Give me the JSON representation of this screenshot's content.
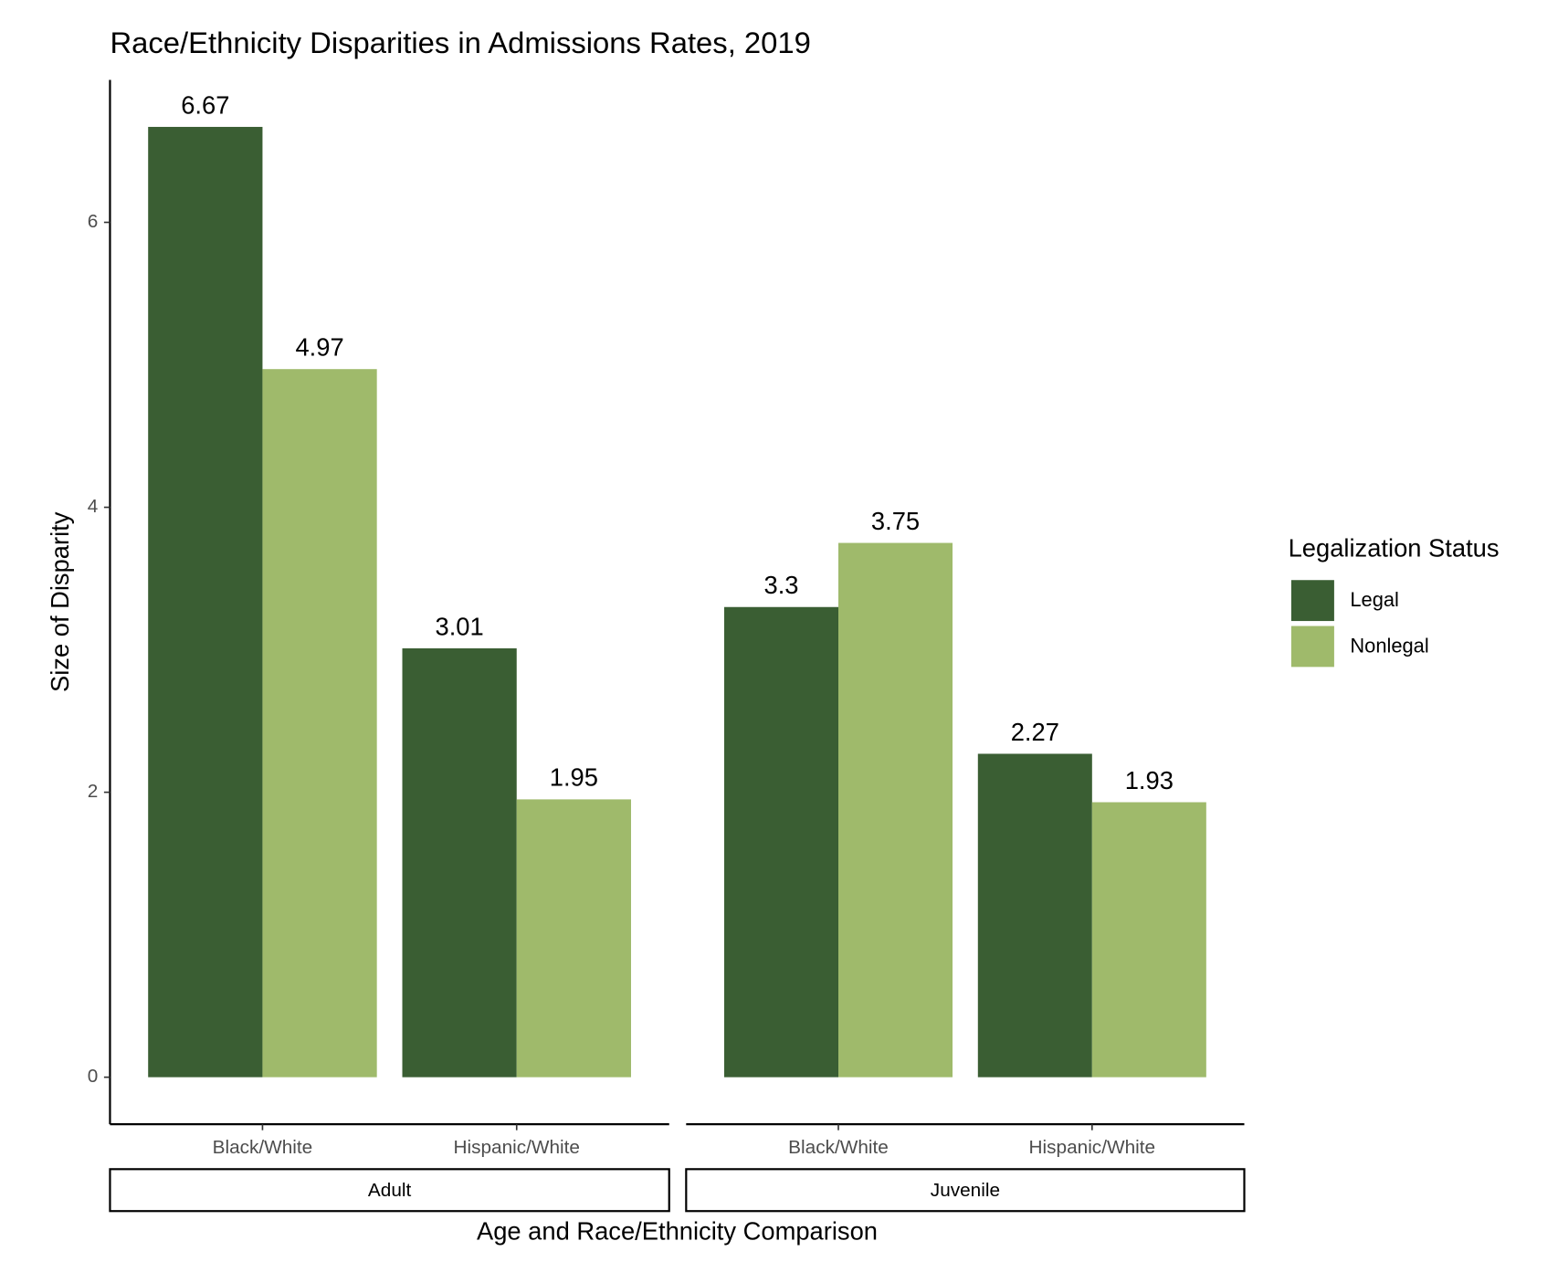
{
  "chart_data": {
    "type": "bar",
    "title": "Race/Ethnicity Disparities in Admissions Rates, 2019",
    "x_label": "Age and Race/Ethnicity Comparison",
    "y_label": "Size of Disparity",
    "legend_title": "Legalization Status",
    "legend_position": "right",
    "ylim": [
      -0.33,
      7.0
    ],
    "yticks": [
      0,
      2,
      4,
      6
    ],
    "grid": false,
    "panels": [
      {
        "label": "Adult",
        "categories": [
          "Black/White",
          "Hispanic/White"
        ],
        "series": [
          {
            "name": "Legal",
            "color": "#3a5e33",
            "values": [
              6.67,
              3.01
            ]
          },
          {
            "name": "Nonlegal",
            "color": "#9fba6b",
            "values": [
              4.97,
              1.95
            ]
          }
        ]
      },
      {
        "label": "Juvenile",
        "categories": [
          "Black/White",
          "Hispanic/White"
        ],
        "series": [
          {
            "name": "Legal",
            "color": "#3a5e33",
            "values": [
              3.3,
              2.27
            ]
          },
          {
            "name": "Nonlegal",
            "color": "#9fba6b",
            "values": [
              3.75,
              1.93
            ]
          }
        ]
      }
    ]
  }
}
